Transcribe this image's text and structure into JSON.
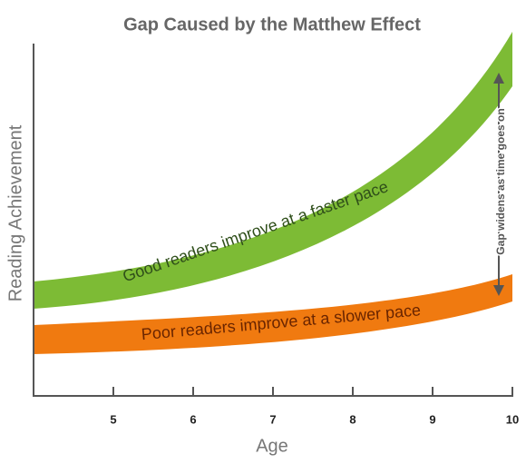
{
  "title": "Gap Caused by the Matthew Effect",
  "axes": {
    "y_label": "Reading Achievement",
    "x_label": "Age",
    "x_ticks": [
      "5",
      "6",
      "7",
      "8",
      "9",
      "10"
    ]
  },
  "bands": [
    {
      "label": "Good readers improve at a faster pace"
    },
    {
      "label": "Poor readers improve at a slower pace"
    }
  ],
  "annotation": "Gap widens as time goes on"
}
